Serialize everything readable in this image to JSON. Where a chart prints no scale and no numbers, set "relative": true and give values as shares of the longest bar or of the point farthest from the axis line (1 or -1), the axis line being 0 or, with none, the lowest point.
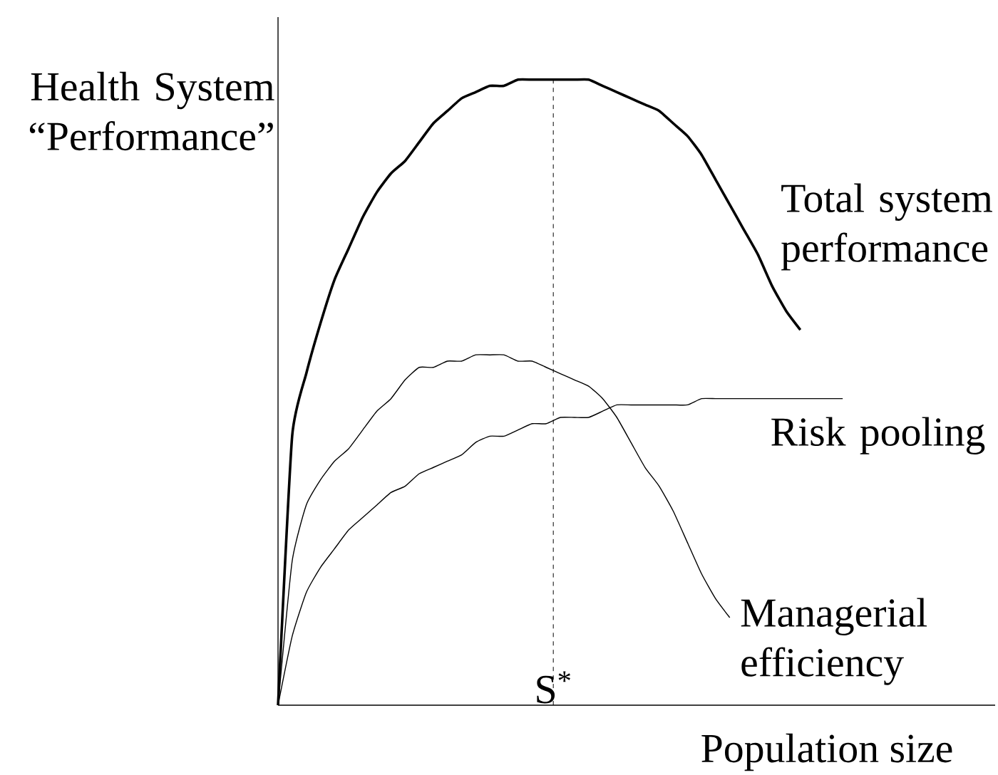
{
  "chart_data": {
    "type": "line",
    "relative": true,
    "xlabel": "Population size",
    "ylabel": "Health System “Performance”",
    "categories": [
      null,
      null,
      null,
      null,
      null,
      null,
      null,
      null,
      null,
      null,
      null,
      null,
      null,
      null,
      null,
      null,
      null,
      null,
      null,
      null,
      null,
      null,
      null,
      null,
      null,
      null,
      null,
      null,
      null,
      null,
      null,
      null,
      null,
      null,
      null,
      null,
      null,
      null,
      null,
      null,
      null
    ],
    "series": [
      {
        "name": "Total system performance",
        "color": "#000000",
        "values": [
          0,
          0.43,
          0.53,
          0.61,
          0.68,
          0.73,
          0.78,
          0.82,
          0.85,
          0.87,
          0.9,
          0.93,
          0.95,
          0.97,
          0.98,
          0.99,
          0.99,
          1,
          1,
          1,
          1,
          1,
          1,
          0.99,
          0.98,
          0.97,
          0.96,
          0.95,
          0.93,
          0.91,
          0.88,
          0.84,
          0.8,
          0.76,
          0.72,
          0.67,
          0.63,
          0.6,
          null,
          null,
          null
        ]
      },
      {
        "name": "Risk pooling",
        "color": "#000000",
        "values": [
          0,
          0.11,
          0.18,
          0.22,
          0.25,
          0.28,
          0.3,
          0.32,
          0.34,
          0.35,
          0.37,
          0.38,
          0.39,
          0.4,
          0.42,
          0.43,
          0.43,
          0.44,
          0.45,
          0.45,
          0.46,
          0.46,
          0.46,
          0.47,
          0.48,
          0.48,
          0.48,
          0.48,
          0.48,
          0.48,
          0.49,
          0.49,
          0.49,
          0.49,
          0.49,
          0.49,
          0.49,
          0.49,
          0.49,
          0.49,
          0.49
        ]
      },
      {
        "name": "Managerial efficiency",
        "color": "#000000",
        "values": [
          0,
          0.23,
          0.32,
          0.36,
          0.39,
          0.41,
          0.44,
          0.47,
          0.49,
          0.52,
          0.54,
          0.54,
          0.55,
          0.55,
          0.56,
          0.56,
          0.56,
          0.55,
          0.55,
          0.54,
          0.53,
          0.52,
          0.51,
          0.49,
          0.46,
          0.42,
          0.38,
          0.35,
          0.31,
          0.26,
          0.21,
          0.17,
          0.14,
          null,
          null,
          null,
          null,
          null,
          null,
          null,
          null
        ]
      }
    ],
    "annotations": [
      "S$^{*}$"
    ],
    "line_style": "solid",
    "marker": "none"
  }
}
